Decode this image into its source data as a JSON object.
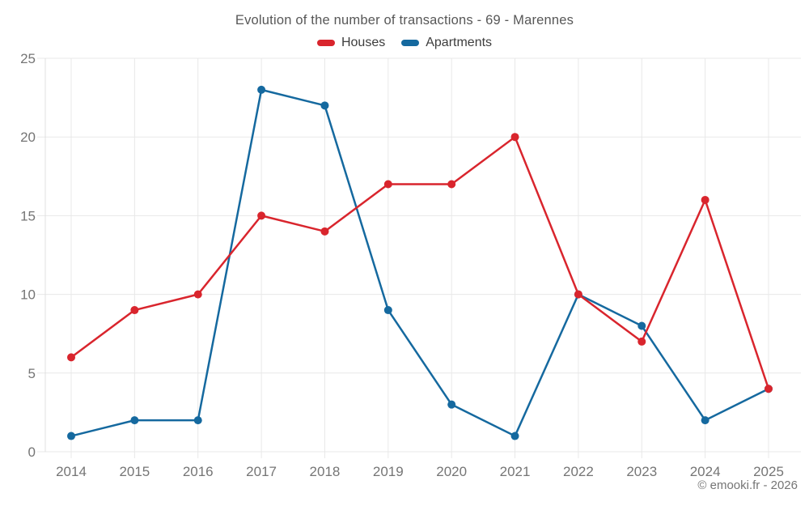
{
  "title": "Evolution of the number of transactions - 69 - Marennes",
  "footer": "© emooki.fr - 2026",
  "colors": {
    "houses": "#d9252d",
    "apartments": "#15699f",
    "grid": "#e8e8e8",
    "axis_line": "#e0e0e0",
    "tick_text": "#757575",
    "title_text": "#575757",
    "legend_text": "#3d3d3d",
    "background": "#ffffff"
  },
  "legend": {
    "items": [
      {
        "label": "Houses",
        "color": "#d9252d"
      },
      {
        "label": "Apartments",
        "color": "#15699f"
      }
    ]
  },
  "chart_data": {
    "type": "line",
    "title": "Evolution of the number of transactions - 69 - Marennes",
    "categories": [
      "2014",
      "2015",
      "2016",
      "2017",
      "2018",
      "2019",
      "2020",
      "2021",
      "2022",
      "2023",
      "2024",
      "2025"
    ],
    "series": [
      {
        "name": "Houses",
        "color": "#d9252d",
        "values": [
          6,
          9,
          10,
          15,
          14,
          17,
          17,
          20,
          10,
          7,
          16,
          4
        ]
      },
      {
        "name": "Apartments",
        "color": "#15699f",
        "values": [
          1,
          2,
          2,
          23,
          22,
          9,
          3,
          1,
          10,
          8,
          2,
          4
        ]
      }
    ],
    "xlabel": "",
    "ylabel": "",
    "ylim": [
      0,
      25
    ],
    "yticks": [
      0,
      5,
      10,
      15,
      20,
      25
    ],
    "grid": true,
    "legend_position": "top",
    "marker_radius": 5,
    "line_width": 2.5
  }
}
